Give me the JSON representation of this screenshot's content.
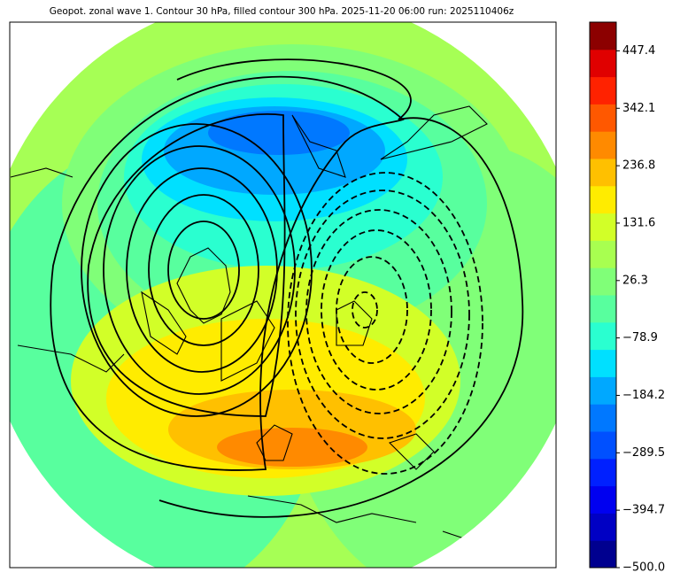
{
  "chart_data": {
    "type": "colorbar",
    "title": "Geopot. zonal wave 1. Contour 30 hPa, filled contour 300 hPa. 2025-11-20 06:00 run: 2025110406z",
    "ylim": [
      -500,
      500
    ],
    "yticks": [
      {
        "value": -500,
        "label": "−500.0"
      },
      {
        "value": -394.7,
        "label": "−394.7"
      },
      {
        "value": -289.5,
        "label": "−289.5"
      },
      {
        "value": -184.2,
        "label": "−184.2"
      },
      {
        "value": -78.9,
        "label": "−78.9"
      },
      26.3,
      131.6,
      236.8,
      342.1,
      447.4
    ],
    "colors": [
      "#00008f",
      "#0000c4",
      "#0000f0",
      "#0020ff",
      "#0050ff",
      "#0078ff",
      "#00a8ff",
      "#00e0ff",
      "#2affd0",
      "#58ff9e",
      "#80ff78",
      "#a8ff50",
      "#d2ff28",
      "#ffec00",
      "#ffc000",
      "#ff8a00",
      "#ff5800",
      "#ff2200",
      "#e00000",
      "#8c0000"
    ]
  }
}
